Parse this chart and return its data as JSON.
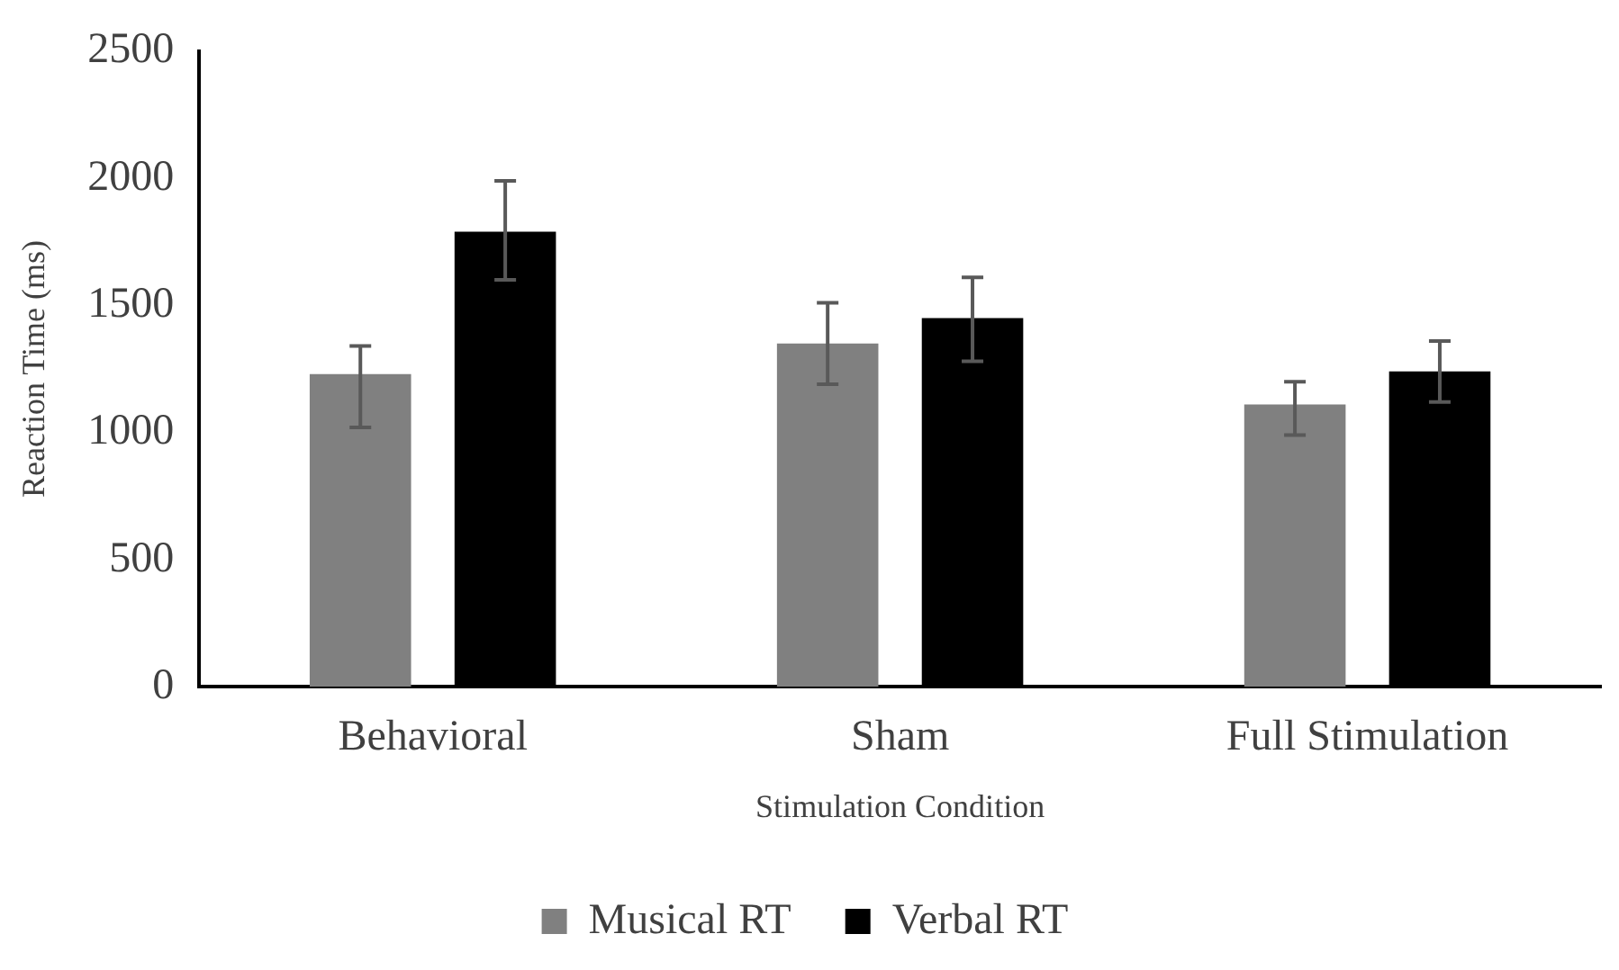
{
  "chart_data": {
    "type": "bar",
    "xlabel": "Stimulation Condition",
    "ylabel": "Reaction Time (ms)",
    "categories": [
      "Behavioral",
      "Sham",
      "Full Stimulation"
    ],
    "series": [
      {
        "name": "Musical RT",
        "color": "#808080",
        "values": [
          1230,
          1350,
          1110
        ],
        "errors": [
          [
            1020,
            1340
          ],
          [
            1190,
            1510
          ],
          [
            990,
            1200
          ]
        ]
      },
      {
        "name": "Verbal RT",
        "color": "#000000",
        "values": [
          1790,
          1450,
          1240
        ],
        "errors": [
          [
            1600,
            1990
          ],
          [
            1280,
            1610
          ],
          [
            1120,
            1360
          ]
        ]
      }
    ],
    "ylim": [
      0,
      2500
    ],
    "yticks": [
      0,
      500,
      1000,
      1500,
      2000,
      2500
    ],
    "grid": false,
    "legend": "bottom"
  }
}
